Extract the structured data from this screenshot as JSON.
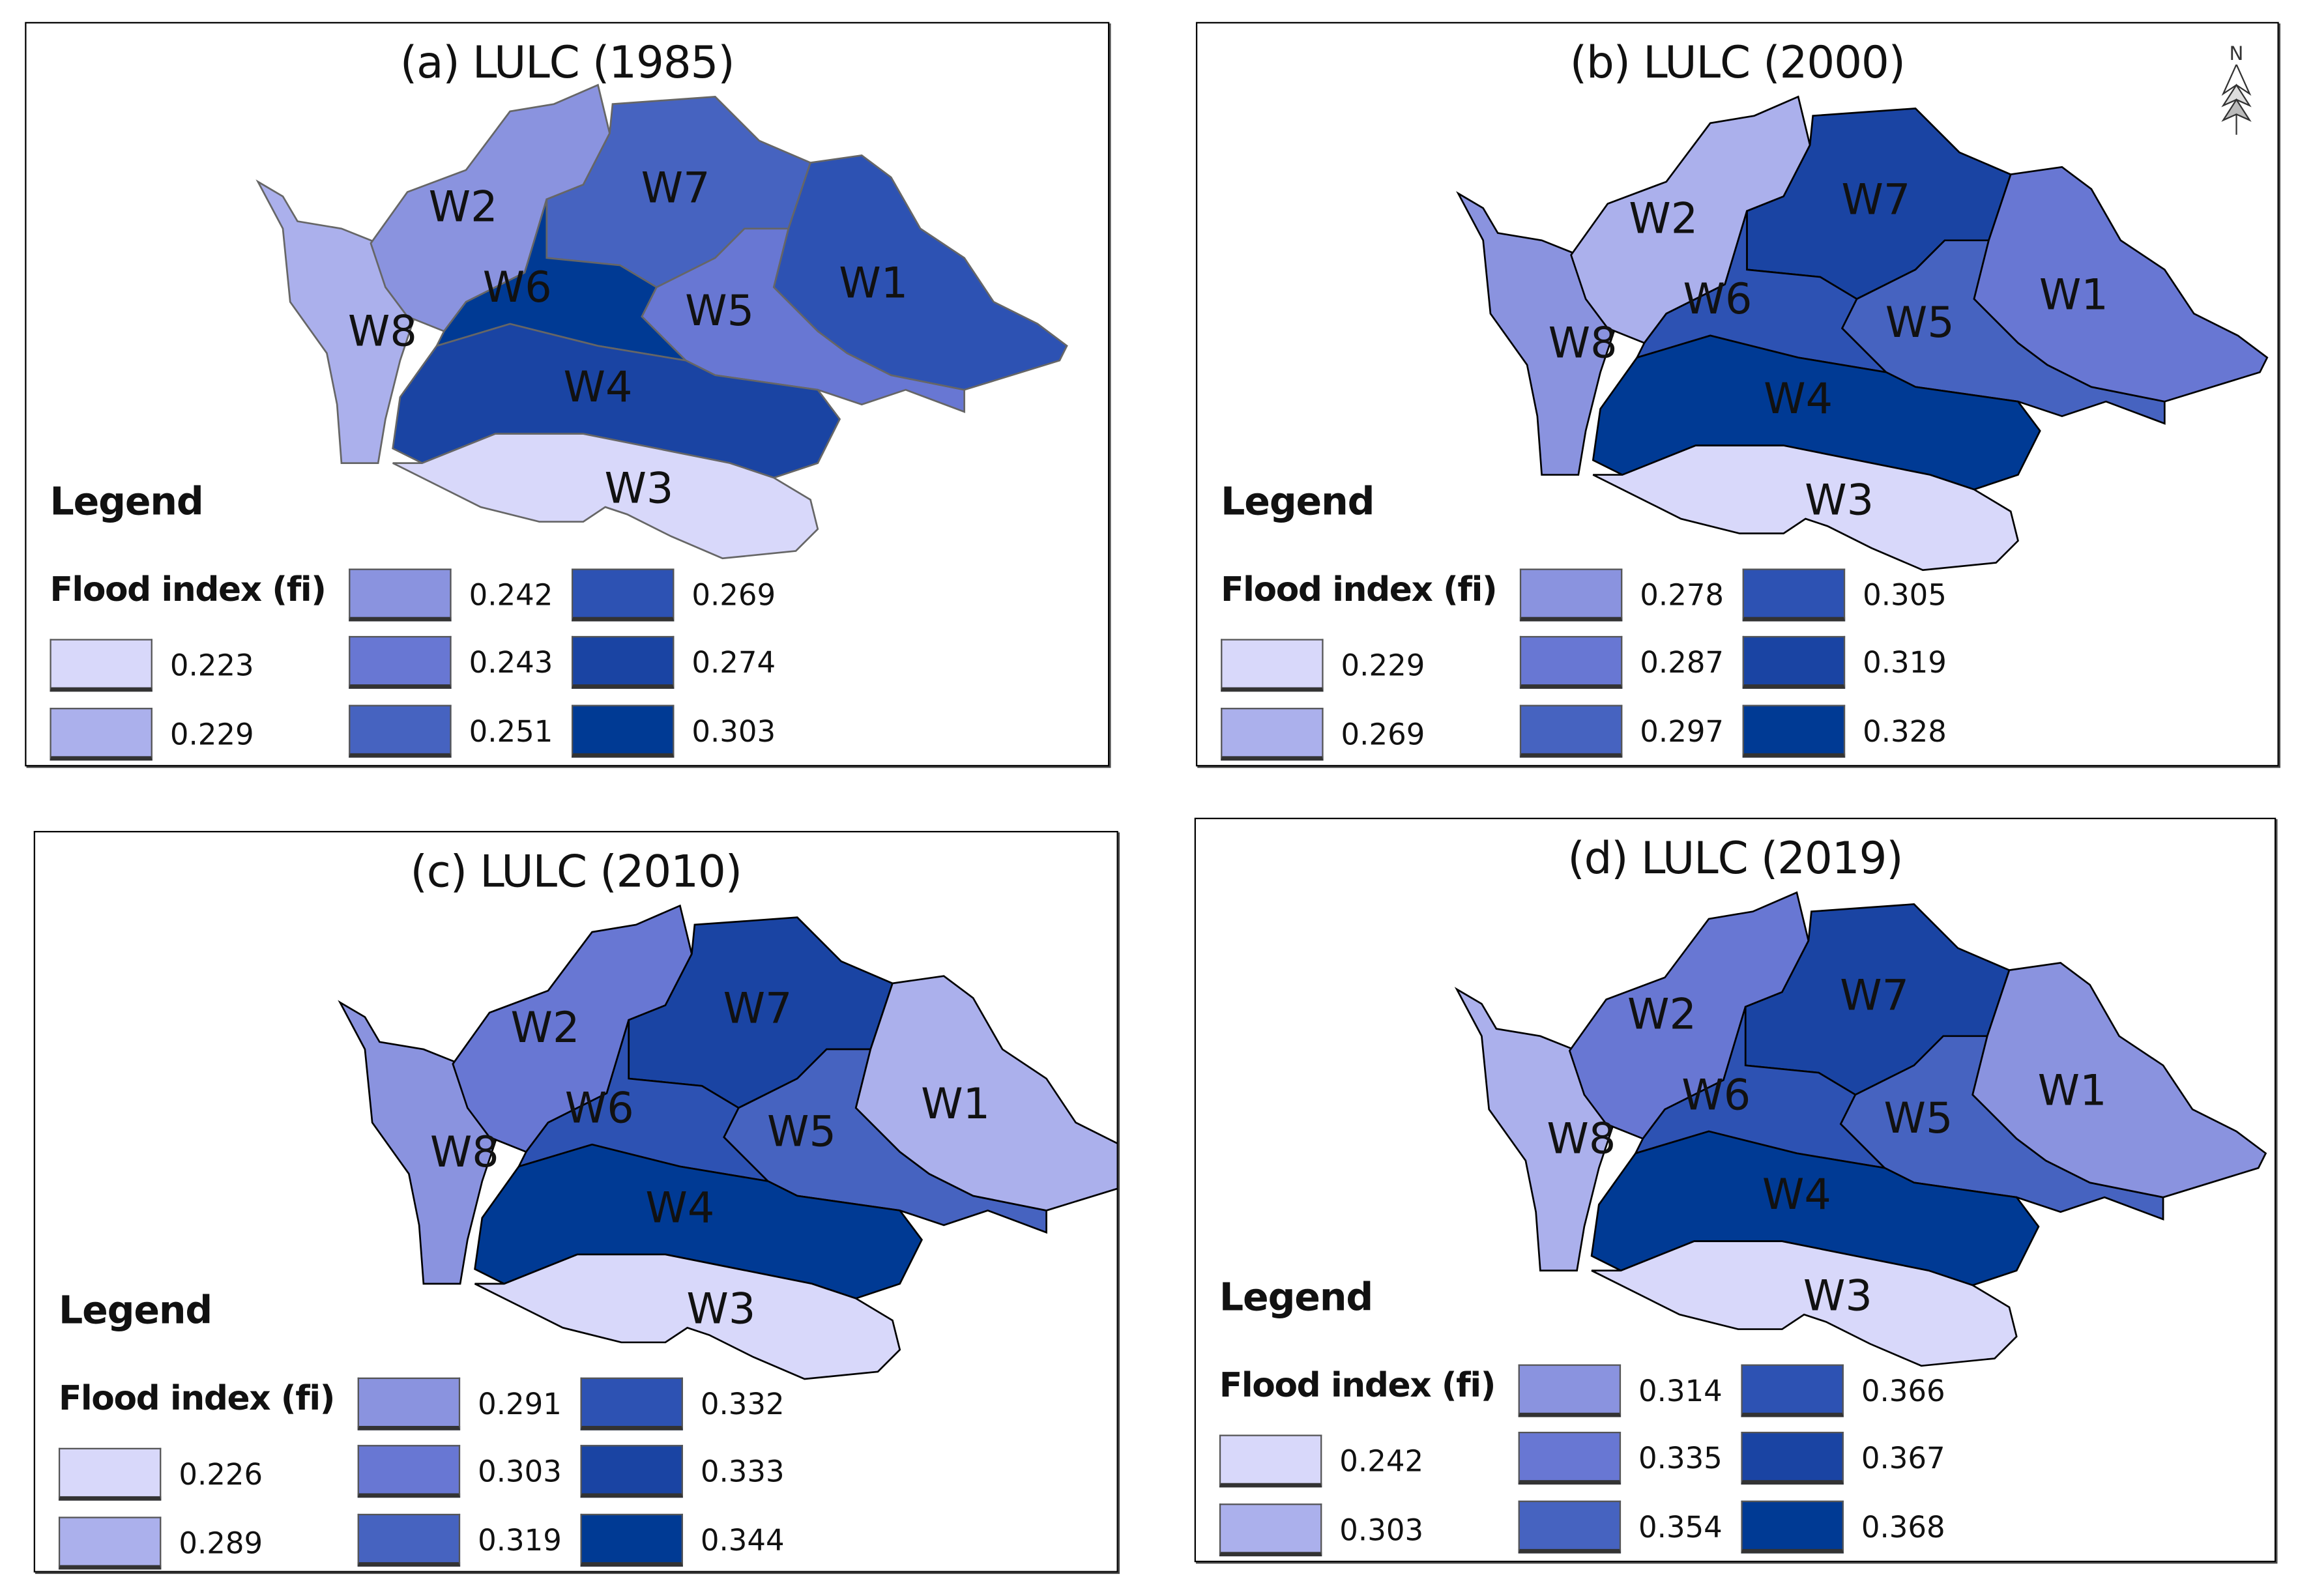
{
  "legend_heading": "Legend",
  "legend_subheading": "Flood index (fi)",
  "class_colors": [
    "#d8d8fa",
    "#abb0ec",
    "#8a93df",
    "#6877d3",
    "#4663c0",
    "#2d52b3",
    "#1a44a3",
    "#003a94"
  ],
  "north_label": "N",
  "panels": [
    {
      "title": "(a) LULC (1985)",
      "legend_values": [
        "0.223",
        "0.229",
        "0.242",
        "0.243",
        "0.251",
        "0.269",
        "0.274",
        "0.303"
      ],
      "watersheds": {
        "W1": "0.269",
        "W2": "0.242",
        "W3": "0.223",
        "W4": "0.274",
        "W5": "0.243",
        "W6": "0.303",
        "W7": "0.251",
        "W8": "0.229"
      }
    },
    {
      "title": "(b) LULC (2000)",
      "legend_values": [
        "0.229",
        "0.269",
        "0.278",
        "0.287",
        "0.297",
        "0.305",
        "0.319",
        "0.328"
      ],
      "watersheds": {
        "W1": "0.287",
        "W2": "0.269",
        "W3": "0.229",
        "W4": "0.328",
        "W5": "0.297",
        "W6": "0.305",
        "W7": "0.319",
        "W8": "0.278"
      }
    },
    {
      "title": "(c) LULC (2010)",
      "legend_values": [
        "0.226",
        "0.289",
        "0.291",
        "0.303",
        "0.319",
        "0.332",
        "0.333",
        "0.344"
      ],
      "watersheds": {
        "W1": "0.289",
        "W2": "0.303",
        "W3": "0.226",
        "W4": "0.344",
        "W5": "0.319",
        "W6": "0.332",
        "W7": "0.333",
        "W8": "0.291"
      }
    },
    {
      "title": "(d) LULC (2019)",
      "legend_values": [
        "0.242",
        "0.303",
        "0.314",
        "0.335",
        "0.354",
        "0.366",
        "0.367",
        "0.368"
      ],
      "watersheds": {
        "W1": "0.314",
        "W2": "0.335",
        "W3": "0.242",
        "W4": "0.368",
        "W5": "0.354",
        "W6": "0.366",
        "W7": "0.367",
        "W8": "0.303"
      }
    }
  ]
}
